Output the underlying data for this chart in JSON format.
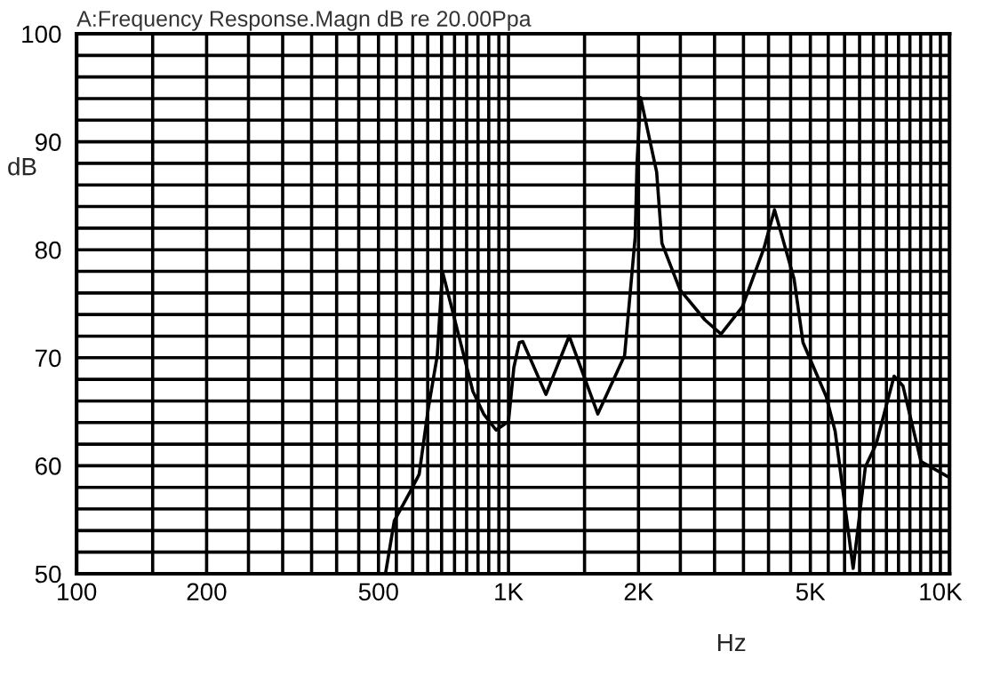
{
  "chart_data": {
    "type": "line",
    "title": "A:Frequency Response.Magn dB re 20.00Ppa",
    "xlabel": "Hz",
    "ylabel": "dB",
    "log": "x",
    "grid": true,
    "marker": "none",
    "line_style": "solid",
    "xlim": [
      100,
      10500
    ],
    "ylim": [
      50,
      100
    ],
    "xticks": [
      100,
      {
        "value": 150,
        "label": null
      },
      200,
      {
        "value": 250,
        "label": null
      },
      {
        "value": 300,
        "label": null
      },
      {
        "value": 350,
        "label": null
      },
      {
        "value": 400,
        "label": null
      },
      {
        "value": 450,
        "label": null
      },
      500,
      {
        "value": 550,
        "label": null
      },
      {
        "value": 600,
        "label": null
      },
      {
        "value": 650,
        "label": null
      },
      {
        "value": 700,
        "label": null
      },
      {
        "value": 750,
        "label": null
      },
      {
        "value": 800,
        "label": null
      },
      {
        "value": 850,
        "label": null
      },
      {
        "value": 900,
        "label": null
      },
      {
        "value": 950,
        "label": null
      },
      {
        "value": 1000,
        "label": "1K"
      },
      {
        "value": 1500,
        "label": null
      },
      {
        "value": 2000,
        "label": "2K"
      },
      {
        "value": 2500,
        "label": null
      },
      {
        "value": 3000,
        "label": null
      },
      {
        "value": 3500,
        "label": null
      },
      {
        "value": 4000,
        "label": null
      },
      {
        "value": 4500,
        "label": null
      },
      {
        "value": 5000,
        "label": "5K"
      },
      {
        "value": 5500,
        "label": null
      },
      {
        "value": 6000,
        "label": null
      },
      {
        "value": 6500,
        "label": null
      },
      {
        "value": 7000,
        "label": null
      },
      {
        "value": 7500,
        "label": null
      },
      {
        "value": 8000,
        "label": null
      },
      {
        "value": 8500,
        "label": null
      },
      {
        "value": 9000,
        "label": null
      },
      {
        "value": 9500,
        "label": null
      },
      {
        "value": 10000,
        "label": "10K"
      }
    ],
    "yticks": [
      50,
      {
        "value": 52,
        "label": null
      },
      {
        "value": 54,
        "label": null
      },
      {
        "value": 56,
        "label": null
      },
      {
        "value": 58,
        "label": null
      },
      60,
      {
        "value": 62,
        "label": null
      },
      {
        "value": 64,
        "label": null
      },
      {
        "value": 66,
        "label": null
      },
      {
        "value": 68,
        "label": null
      },
      70,
      {
        "value": 72,
        "label": null
      },
      {
        "value": 74,
        "label": null
      },
      {
        "value": 76,
        "label": null
      },
      {
        "value": 78,
        "label": null
      },
      80,
      {
        "value": 82,
        "label": null
      },
      {
        "value": 84,
        "label": null
      },
      {
        "value": 86,
        "label": null
      },
      {
        "value": 88,
        "label": null
      },
      90,
      {
        "value": 92,
        "label": null
      },
      {
        "value": 94,
        "label": null
      },
      {
        "value": 96,
        "label": null
      },
      {
        "value": 98,
        "label": null
      },
      100
    ],
    "series": [
      {
        "color": "#000000",
        "x": [
          519,
          544,
          592,
          621,
          652,
          684,
          703,
          738,
          827,
          876,
          936,
          1000,
          1029,
          1059,
          1079,
          1221,
          1382,
          1610,
          1857,
          1965,
          1984,
          2022,
          2203,
          2266,
          2494,
          2851,
          3105,
          3478,
          3901,
          4130,
          4584,
          4808,
          5441,
          5706,
          6281,
          6704,
          7100,
          7813,
          8190,
          9015,
          10400
        ],
        "values": [
          50,
          54.9,
          57.6,
          59.2,
          65.3,
          70.2,
          78,
          74.7,
          66.9,
          64.8,
          63.3,
          64.1,
          69.1,
          71.4,
          71.5,
          66.6,
          72,
          64.8,
          70.2,
          81.2,
          88,
          94.1,
          87.2,
          80.6,
          76.3,
          73.5,
          72.2,
          74.7,
          80.1,
          83.7,
          77.3,
          71.4,
          66.4,
          63.2,
          50.5,
          59.9,
          62,
          68.3,
          67.4,
          60.4,
          59
        ]
      }
    ]
  }
}
